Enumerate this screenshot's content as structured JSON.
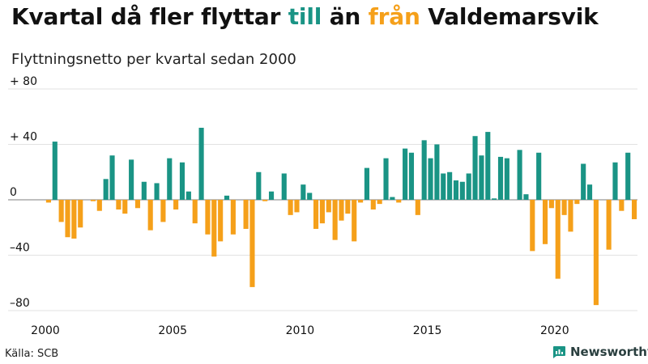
{
  "title_parts": [
    "Kvartal då fler flyttar ",
    "till",
    " än ",
    "från",
    " Valdemarsvik"
  ],
  "subtitle": "Flyttningsnetto per kvartal sedan 2000",
  "source": "Källa: SCB",
  "brand": "Newsworthy",
  "colors": {
    "positive": "#1a9485",
    "negative": "#f5a01a",
    "text": "#111111",
    "grid": "#e2e2e2",
    "baseline": "#999999"
  },
  "chart_data": {
    "type": "bar",
    "title": "Kvartal då fler flyttar till än från Valdemarsvik",
    "subtitle": "Flyttningsnetto per kvartal sedan 2000",
    "ylim": [
      -80,
      80
    ],
    "yticks": [
      80,
      40,
      0,
      -40,
      -80
    ],
    "ytick_labels": [
      "+ 80",
      "+ 40",
      "0",
      "–40",
      "–80"
    ],
    "xlim": [
      "2000-Q1",
      "2023-Q2"
    ],
    "xticks": [
      "2000",
      "2005",
      "2010",
      "2015",
      "2020"
    ],
    "grid": true,
    "start_year": 2000,
    "values": [
      -2,
      42,
      -16,
      -27,
      -28,
      -20,
      0,
      -1,
      -8,
      15,
      32,
      -7,
      -10,
      29,
      -6,
      13,
      -22,
      12,
      -16,
      30,
      -7,
      27,
      6,
      -17,
      52,
      -25,
      -41,
      -30,
      3,
      -25,
      0,
      -21,
      -63,
      20,
      -1,
      6,
      0,
      19,
      -11,
      -9,
      11,
      5,
      -21,
      -17,
      -9,
      -29,
      -15,
      -10,
      -30,
      -2,
      23,
      -7,
      -3,
      30,
      2,
      -2,
      37,
      34,
      -11,
      43,
      30,
      40,
      19,
      20,
      14,
      13,
      19,
      46,
      32,
      49,
      1,
      31,
      30,
      0,
      36,
      4,
      -37,
      34,
      -32,
      -6,
      -57,
      -11,
      -23,
      -3,
      26,
      11,
      -76,
      0,
      -36,
      27,
      -8,
      34,
      -14
    ]
  }
}
